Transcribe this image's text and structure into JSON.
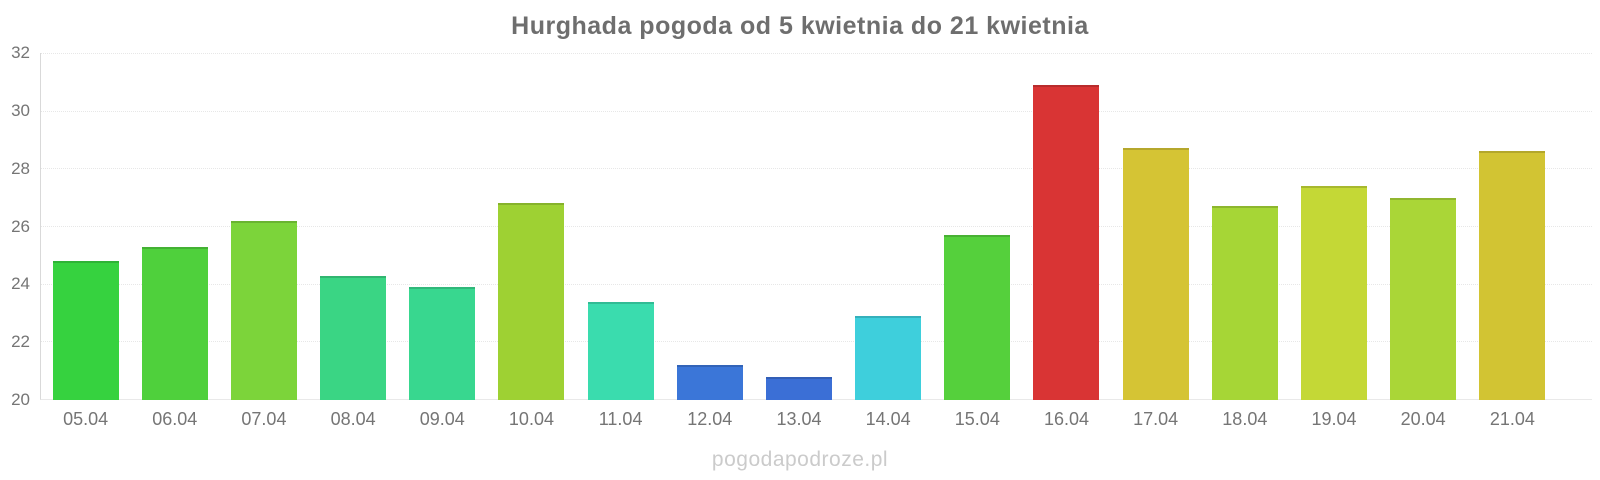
{
  "title": "Hurghada pogoda od 5 kwietnia do 21 kwietnia",
  "watermark": "pogodapodroze.pl",
  "colors": {
    "title_text": "#6e6e6e",
    "axis_text": "#757575",
    "grid_line": "#e7e7e7",
    "watermark_text": "#cbcbcb"
  },
  "chart_data": {
    "type": "bar",
    "title": "Hurghada pogoda od 5 kwietnia do 21 kwietnia",
    "xlabel": "",
    "ylabel": "",
    "ylim": [
      20,
      32
    ],
    "yticks": [
      20,
      22,
      24,
      26,
      28,
      30,
      32
    ],
    "grid": true,
    "legend": false,
    "categories": [
      "05.04",
      "06.04",
      "07.04",
      "08.04",
      "09.04",
      "10.04",
      "11.04",
      "12.04",
      "13.04",
      "14.04",
      "15.04",
      "16.04",
      "17.04",
      "18.04",
      "19.04",
      "20.04",
      "21.04"
    ],
    "values": [
      24.8,
      25.3,
      26.2,
      24.3,
      23.9,
      26.8,
      23.4,
      21.2,
      20.8,
      22.9,
      25.7,
      30.9,
      28.7,
      26.7,
      27.4,
      27.0,
      28.6
    ],
    "bar_colors": [
      "#36d23f",
      "#4fd03c",
      "#7cd43a",
      "#3ad584",
      "#38d78f",
      "#9ed133",
      "#3adcae",
      "#3b76d8",
      "#3b6fd6",
      "#3ecfdc",
      "#55d03c",
      "#d93434",
      "#d5c434",
      "#a6d636",
      "#c4d836",
      "#aad637",
      "#d2c433"
    ]
  }
}
